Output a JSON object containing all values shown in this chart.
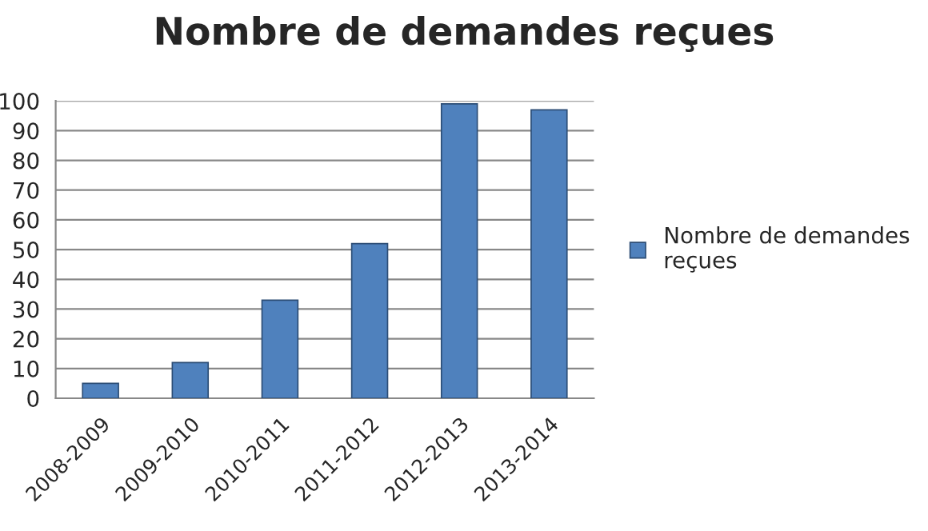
{
  "chart_data": {
    "type": "bar",
    "title": "Nombre de demandes reçues",
    "categories": [
      "2008-2009",
      "2009-2010",
      "2010-2011",
      "2011-2012",
      "2012-2013",
      "2013-2014"
    ],
    "series": [
      {
        "name": "Nombre de demandes reçues",
        "color": "#4f81bd",
        "values": [
          5,
          12,
          33,
          52,
          99,
          97
        ]
      }
    ],
    "ylim": [
      0,
      100
    ],
    "yticks": [
      0,
      10,
      20,
      30,
      40,
      50,
      60,
      70,
      80,
      90,
      100
    ],
    "grid": "y",
    "legend": "right"
  }
}
